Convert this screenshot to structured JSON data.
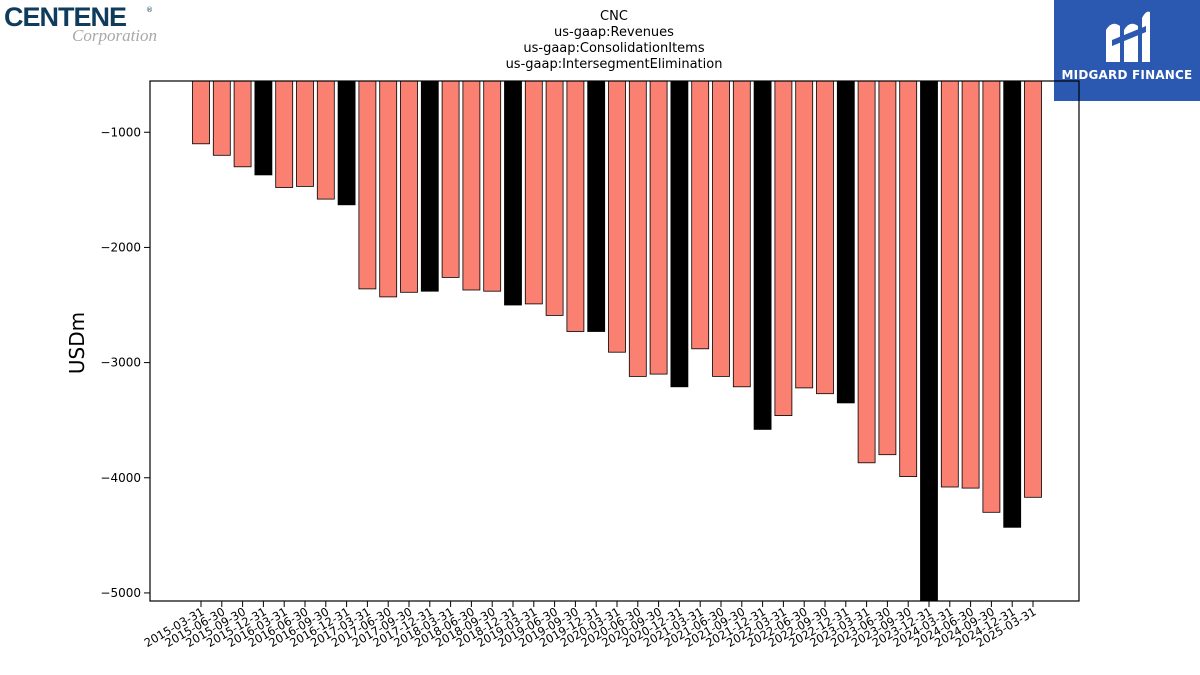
{
  "logos": {
    "left_brand": "CENTENE",
    "left_sub": "Corporation",
    "left_mark": "®",
    "right_brand": "MIDGARD FINANCE"
  },
  "chart_data": {
    "type": "bar",
    "title_lines": [
      "CNC",
      "us-gaap:Revenues",
      "us-gaap:ConsolidationItems",
      "us-gaap:IntersegmentElimination"
    ],
    "xlabel": "",
    "ylabel": "USDm",
    "ylim": [
      -5070,
      -555
    ],
    "yticks": [
      -1000,
      -2000,
      -3000,
      -4000,
      -5000
    ],
    "grid": false,
    "colors": {
      "quarter": "#fa8072",
      "year_end": "#000000",
      "edge": "#000000"
    },
    "categories": [
      "2015-03-31",
      "2015-06-30",
      "2015-09-30",
      "2015-12-31",
      "2016-03-31",
      "2016-06-30",
      "2016-09-30",
      "2016-12-31",
      "2017-03-31",
      "2017-06-30",
      "2017-09-30",
      "2017-12-31",
      "2018-03-31",
      "2018-06-30",
      "2018-09-30",
      "2018-12-31",
      "2019-03-31",
      "2019-06-30",
      "2019-09-30",
      "2019-12-31",
      "2020-03-31",
      "2020-06-30",
      "2020-09-30",
      "2020-12-31",
      "2021-03-31",
      "2021-06-30",
      "2021-09-30",
      "2021-12-31",
      "2022-03-31",
      "2022-06-30",
      "2022-09-30",
      "2022-12-31",
      "2023-03-31",
      "2023-06-30",
      "2023-09-30",
      "2023-12-31",
      "2024-03-31",
      "2024-06-30",
      "2024-09-30",
      "2024-12-31",
      "2025-03-31"
    ],
    "values": [
      -1100,
      -1200,
      -1300,
      -1370,
      -1480,
      -1470,
      -1580,
      -1630,
      -2360,
      -2430,
      -2390,
      -2380,
      -2260,
      -2370,
      -2380,
      -2500,
      -2490,
      -2590,
      -2730,
      -2730,
      -2910,
      -3120,
      -3100,
      -3210,
      -2880,
      -3120,
      -3210,
      -3580,
      -3460,
      -3220,
      -3270,
      -3350,
      -3870,
      -3800,
      -3990,
      -5070,
      -4080,
      -4090,
      -4300,
      -4430,
      -4170
    ],
    "highlight": [
      false,
      false,
      false,
      true,
      false,
      false,
      false,
      true,
      false,
      false,
      false,
      true,
      false,
      false,
      false,
      true,
      false,
      false,
      false,
      true,
      false,
      false,
      false,
      true,
      false,
      false,
      false,
      true,
      false,
      false,
      false,
      true,
      false,
      false,
      false,
      true,
      false,
      false,
      false,
      true,
      false
    ]
  }
}
